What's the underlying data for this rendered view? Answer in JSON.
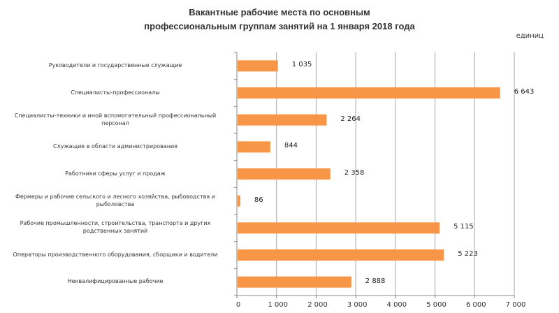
{
  "header": {
    "title_line1": "Вакантные  рабочие  места  по основным",
    "title_line2": "профессиональным  группам занятий  на 1 января  2018 года",
    "unit": "единиц"
  },
  "colors": {
    "bar": "#f79646",
    "grid": "#a6a6a6",
    "axis": "#888888"
  },
  "chart_data": {
    "type": "bar",
    "orientation": "horizontal",
    "title": "Вакантные рабочие места по основным профессиональным группам занятий на 1 января 2018 года",
    "unit_label": "единиц",
    "categories": [
      "Руководители и государственные служащие",
      "Специалисты-профессионалы",
      "Специалисты-техники и иной вспомогательный профессиональный персонал",
      "Служащие в области администрирования",
      "Работники сферы услуг и продаж",
      "Фермеры и рабочие сельского и лесного хозяйства, рыбоводства и рыболовства",
      "Рабочие промышленности, строительства, транспорта и других родственных занятий",
      "Операторы производственного оборудования, сборщики и водители",
      "Неквалифицированные рабочие"
    ],
    "values": [
      1035,
      6643,
      2264,
      844,
      2358,
      86,
      5115,
      5223,
      2888
    ],
    "value_labels": [
      "1 035",
      "6 643",
      "2 264",
      "844",
      "2 358",
      "86",
      "5 115",
      "5 223",
      "2 888"
    ],
    "category_lines": [
      [
        "Руководители и государственные служащие"
      ],
      [
        "Специалисты-профессионалы"
      ],
      [
        "Специалисты-техники и иной вспомогательный профессиональный",
        "персонал"
      ],
      [
        "Служащие в области администрирования"
      ],
      [
        "Работники сферы услуг и продаж"
      ],
      [
        "Фермеры и рабочие сельского и лесного хозяйства, рыбоводства и",
        "рыболовства"
      ],
      [
        "Рабочие промышленности, строительства, транспорта и других",
        "родственных занятий"
      ],
      [
        "Операторы производственного оборудования, сборщики и водители"
      ],
      [
        "Неквалифицированные рабочие"
      ]
    ],
    "xlim": [
      0,
      7000
    ],
    "x_ticks": [
      0,
      1000,
      2000,
      3000,
      4000,
      5000,
      6000,
      7000
    ],
    "x_tick_labels": [
      "0",
      "1 000",
      "2 000",
      "3 000",
      "4 000",
      "5 000",
      "6 000",
      "7 000"
    ],
    "grid": "vertical",
    "legend": "none",
    "xlabel": "",
    "ylabel": ""
  }
}
